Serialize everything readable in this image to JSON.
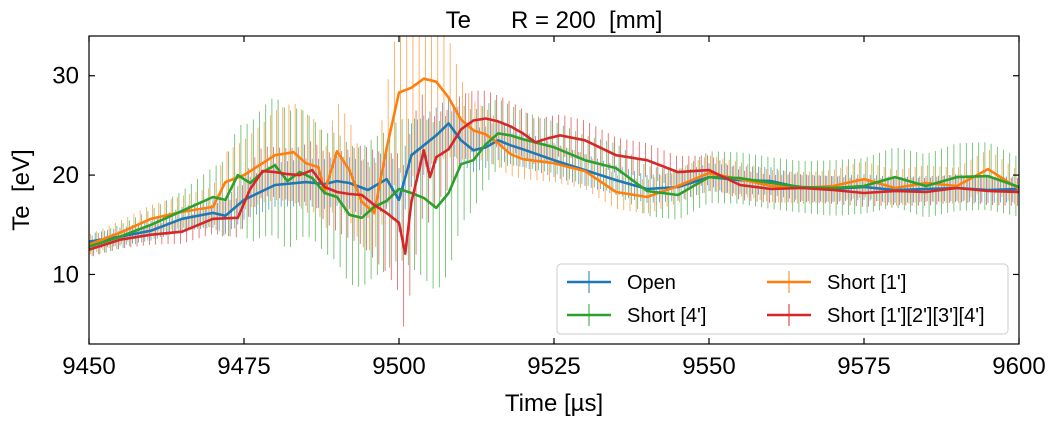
{
  "chart_data": {
    "type": "line",
    "title": "Te      R = 200  [mm]",
    "xlabel": "Time  [µs]",
    "ylabel": "Te  [eV]",
    "xlim": [
      9450,
      9600
    ],
    "ylim": [
      3,
      34
    ],
    "xticks": [
      9450,
      9475,
      9500,
      9525,
      9550,
      9575,
      9600
    ],
    "yticks": [
      10,
      20,
      30
    ],
    "grid": false,
    "legend": {
      "placement": "lower-right",
      "columns": 2
    },
    "series": [
      {
        "name": "Open",
        "color": "#1f77b4",
        "x": [
          9450,
          9455,
          9460,
          9465,
          9470,
          9472,
          9475,
          9480,
          9485,
          9488,
          9490,
          9492,
          9495,
          9498,
          9500,
          9502,
          9504,
          9506,
          9508,
          9510,
          9512,
          9514,
          9516,
          9518,
          9520,
          9525,
          9530,
          9535,
          9540,
          9545,
          9550,
          9555,
          9560,
          9565,
          9570,
          9575,
          9580,
          9585,
          9590,
          9595,
          9600
        ],
        "y": [
          13.3,
          13.8,
          14.4,
          15.6,
          16.2,
          15.9,
          17.5,
          19,
          19.3,
          19.1,
          19.4,
          19.2,
          18.5,
          19.6,
          17.5,
          22,
          23,
          24,
          25.2,
          23.5,
          22.5,
          22.8,
          23.5,
          23,
          22.6,
          21.5,
          20.5,
          19.5,
          18.6,
          18.8,
          19.8,
          19.5,
          19.4,
          18.7,
          18.6,
          18.8,
          18.5,
          18.6,
          18.7,
          18.5,
          18.6
        ],
        "err": [
          0.8,
          0.9,
          1,
          1.2,
          1.5,
          1.8,
          2,
          2.2,
          2.4,
          2.5,
          2.5,
          2.6,
          2.8,
          3,
          3.2,
          3.2,
          3,
          2.8,
          2.6,
          2.4,
          2.2,
          2.1,
          2,
          1.9,
          1.8,
          1.7,
          1.6,
          1.5,
          1.4,
          1.4,
          1.4,
          1.4,
          1.4,
          1.3,
          1.3,
          1.3,
          1.3,
          1.3,
          1.3,
          1.3,
          1.3
        ]
      },
      {
        "name": "Short [1']",
        "color": "#ff7f0e",
        "x": [
          9450,
          9455,
          9460,
          9465,
          9470,
          9472,
          9475,
          9478,
          9480,
          9483,
          9485,
          9487,
          9488,
          9490,
          9492,
          9494,
          9496,
          9498,
          9500,
          9502,
          9504,
          9506,
          9508,
          9510,
          9512,
          9514,
          9516,
          9518,
          9520,
          9525,
          9530,
          9535,
          9540,
          9545,
          9550,
          9555,
          9560,
          9565,
          9570,
          9575,
          9580,
          9585,
          9590,
          9595,
          9600
        ],
        "y": [
          13,
          14.2,
          15.6,
          16.3,
          16.8,
          19.3,
          20,
          21.2,
          22,
          22.3,
          21.2,
          20.8,
          18.3,
          22.4,
          20.5,
          17.3,
          16.2,
          22.7,
          28.3,
          28.8,
          29.7,
          29.4,
          27.8,
          25.6,
          24.5,
          24.1,
          23.2,
          22.1,
          21.6,
          21.2,
          20.4,
          18.3,
          17.8,
          18.9,
          20.2,
          19.6,
          18.9,
          18.7,
          18.9,
          19.6,
          18.7,
          19.2,
          18.9,
          20.6,
          18.6
        ],
        "err": [
          1,
          1.2,
          1.4,
          1.6,
          2,
          3,
          3.5,
          4,
          4.5,
          5,
          5,
          4.5,
          4,
          5,
          5,
          4.5,
          4,
          6,
          8,
          9,
          9,
          8,
          6,
          4,
          3,
          2.6,
          2.4,
          2.2,
          2,
          1.9,
          1.8,
          1.7,
          1.7,
          1.7,
          1.8,
          1.7,
          1.6,
          1.6,
          1.6,
          1.8,
          1.8,
          1.8,
          1.8,
          2,
          1.8
        ]
      },
      {
        "name": "Short [4']",
        "color": "#2ca02c",
        "x": [
          9450,
          9455,
          9460,
          9465,
          9470,
          9472,
          9474,
          9476,
          9478,
          9480,
          9482,
          9484,
          9486,
          9488,
          9490,
          9492,
          9494,
          9496,
          9498,
          9500,
          9502,
          9504,
          9506,
          9508,
          9510,
          9512,
          9514,
          9516,
          9518,
          9520,
          9525,
          9530,
          9535,
          9540,
          9545,
          9550,
          9555,
          9560,
          9565,
          9570,
          9575,
          9580,
          9585,
          9590,
          9595,
          9600
        ],
        "y": [
          12.8,
          13.8,
          15,
          16.4,
          17.8,
          17.5,
          20,
          19.2,
          20.3,
          21,
          19.4,
          20.3,
          19.7,
          18.2,
          17.8,
          16,
          15.7,
          16.8,
          17.4,
          18.6,
          18.2,
          17.7,
          16.7,
          18.2,
          21.1,
          21.5,
          23.1,
          24.2,
          24,
          23.6,
          22.8,
          21.5,
          20.7,
          18.4,
          18,
          19.8,
          19.7,
          19.2,
          18.8,
          18.7,
          18.9,
          19.8,
          18.9,
          19.8,
          19.9,
          18.8
        ],
        "err": [
          1,
          1.2,
          1.5,
          2,
          3,
          4,
          5,
          6,
          6.5,
          7,
          7,
          6.5,
          6,
          6,
          6.5,
          7,
          7,
          7,
          7,
          7,
          7.5,
          8,
          8.5,
          8,
          6,
          5,
          4,
          3.5,
          3,
          2.8,
          2.6,
          2.5,
          2.5,
          2.5,
          2.5,
          2.6,
          2.6,
          2.6,
          2.6,
          2.8,
          2.8,
          3,
          3.2,
          3.4,
          3.4,
          3
        ]
      },
      {
        "name": "Short [1'][2'][3'][4']",
        "color": "#d62728",
        "x": [
          9450,
          9455,
          9460,
          9465,
          9470,
          9474,
          9476,
          9478,
          9480,
          9482,
          9484,
          9486,
          9488,
          9490,
          9492,
          9494,
          9496,
          9498,
          9500,
          9501,
          9502,
          9504,
          9505,
          9506,
          9508,
          9510,
          9512,
          9514,
          9516,
          9518,
          9520,
          9522,
          9524,
          9526,
          9530,
          9535,
          9540,
          9545,
          9550,
          9555,
          9560,
          9565,
          9570,
          9575,
          9580,
          9585,
          9590,
          9595,
          9600
        ],
        "y": [
          12.5,
          13.5,
          14,
          14.3,
          15.6,
          15.7,
          18.6,
          20.4,
          20.3,
          20.1,
          20,
          20.5,
          18.8,
          18.3,
          18.1,
          18,
          17,
          16.2,
          15.2,
          12.1,
          17.3,
          22.5,
          19.8,
          21.8,
          22.6,
          24.6,
          25.5,
          25.7,
          25.4,
          24.9,
          24.2,
          23.3,
          23.7,
          24,
          23.5,
          22,
          21.5,
          20.3,
          20.5,
          19,
          18.6,
          18.7,
          18.5,
          18.2,
          18.4,
          18.3,
          18.7,
          18.4,
          18.3
        ],
        "err": [
          0.8,
          0.9,
          1,
          1.2,
          1.5,
          2,
          2.5,
          2.5,
          2.5,
          2.6,
          2.8,
          3,
          3.5,
          4,
          4.5,
          5,
          5.5,
          6,
          7,
          8.5,
          8,
          6,
          5,
          4.5,
          4,
          3.5,
          3,
          2.8,
          2.6,
          2.5,
          2.4,
          2.3,
          2.2,
          2.1,
          2,
          1.8,
          1.7,
          1.6,
          1.5,
          1.5,
          1.4,
          1.4,
          1.4,
          1.4,
          1.4,
          1.4,
          1.4,
          1.4,
          1.4
        ]
      }
    ]
  }
}
